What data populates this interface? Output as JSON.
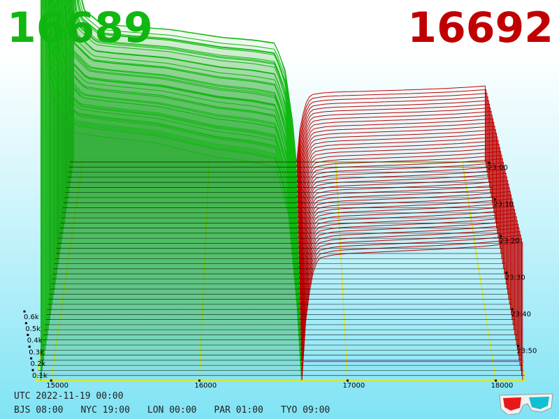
{
  "header": {
    "bid_price": "16689",
    "ask_price": "16692"
  },
  "footer": {
    "utc": "UTC 2022-11-19 00:00",
    "zones": [
      "BJS 08:00",
      "NYC 19:00",
      "LON 00:00",
      "PAR 01:00",
      "TYO 09:00"
    ]
  },
  "colors": {
    "bid": "#10b810",
    "ask": "#c00000",
    "grid": "#e8e800",
    "base": "#000000",
    "highlight": "#b030ff"
  },
  "chart_data": {
    "type": "area",
    "view": "3d-depth-waterfall",
    "x_ticks": [
      "15000",
      "16000",
      "17000",
      "18000"
    ],
    "z_ticks": [
      "0.1k",
      "0.2k",
      "0.3k",
      "0.4k",
      "0.5k",
      "0.6k"
    ],
    "time_ticks": [
      "23:00",
      "23:10",
      "23:20",
      "23:30",
      "23:40",
      "23:50"
    ],
    "bid_price": 16689,
    "ask_price": 16692,
    "xlim": [
      14900,
      18200
    ],
    "bid_profile": [
      [
        14930,
        590
      ],
      [
        14950,
        540
      ],
      [
        15000,
        400
      ],
      [
        15150,
        360
      ],
      [
        15300,
        355
      ],
      [
        15500,
        350
      ],
      [
        15700,
        345
      ],
      [
        15900,
        335
      ],
      [
        16100,
        325
      ],
      [
        16350,
        318
      ],
      [
        16520,
        310
      ],
      [
        16600,
        240
      ],
      [
        16640,
        150
      ],
      [
        16670,
        80
      ],
      [
        16689,
        0
      ]
    ],
    "ask_profile": [
      [
        16692,
        0
      ],
      [
        16720,
        95
      ],
      [
        16760,
        150
      ],
      [
        16800,
        175
      ],
      [
        16900,
        180
      ],
      [
        17000,
        182
      ],
      [
        17300,
        185
      ],
      [
        17600,
        188
      ],
      [
        17900,
        192
      ],
      [
        18100,
        196
      ],
      [
        18180,
        198
      ]
    ]
  }
}
